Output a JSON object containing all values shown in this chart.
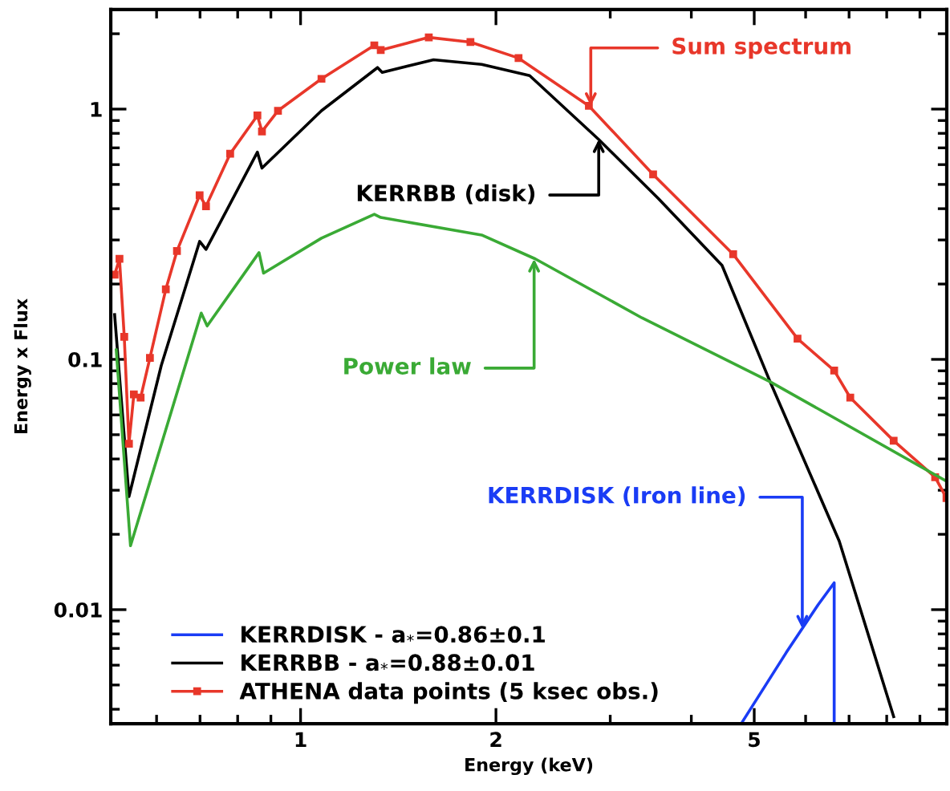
{
  "chart_data": {
    "type": "line",
    "xlabel": "Energy (keV)",
    "ylabel": "Energy x Flux",
    "log": "xy",
    "grid": false,
    "legend": "bottom left",
    "xlim": [
      0.51,
      9.9
    ],
    "ylim": [
      0.0035,
      2.5
    ],
    "xticks": [
      1,
      2,
      5
    ],
    "yticks": [
      0.01,
      0.1,
      1
    ],
    "series": [
      {
        "name": "KERRDISK - a$_{*}$=0.86±0.1",
        "color": "#1a3cf5",
        "marker": "none",
        "x": [
          4.8,
          5.6,
          6.27,
          6.64,
          6.64
        ],
        "values": [
          0.00358,
          0.00673,
          0.01045,
          0.0128,
          0.0035
        ]
      },
      {
        "name": "KERRBB - a$_{*}$=0.88±0.01",
        "color": "#000000",
        "marker": "none",
        "x": [
          0.517,
          0.544,
          0.61,
          0.699,
          0.715,
          0.858,
          0.872,
          1.077,
          1.314,
          1.336,
          1.603,
          1.901,
          2.254,
          2.879,
          3.556,
          4.46,
          5.29,
          6.76,
          8.2
        ],
        "values": [
          0.151,
          0.0283,
          0.0944,
          0.296,
          0.275,
          0.673,
          0.581,
          0.985,
          1.465,
          1.401,
          1.575,
          1.508,
          1.361,
          0.757,
          0.44,
          0.2376,
          0.0814,
          0.0188,
          0.00374
        ]
      },
      {
        "name": "ATHENA data points (5 ksec obs.)",
        "color": "#e8372a",
        "marker": "square",
        "x": [
          0.517,
          0.526,
          0.535,
          0.544,
          0.5535,
          0.567,
          0.586,
          0.62,
          0.645,
          0.699,
          0.715,
          0.779,
          0.858,
          0.872,
          0.923,
          1.077,
          1.299,
          1.329,
          1.576,
          1.827,
          2.167,
          2.781,
          3.493,
          4.64,
          5.83,
          6.64,
          7.03,
          8.2,
          9.5,
          9.89
        ],
        "values": [
          0.218,
          0.252,
          0.123,
          0.046,
          0.0724,
          0.0703,
          0.1014,
          0.1906,
          0.271,
          0.453,
          0.409,
          0.663,
          0.943,
          0.814,
          0.985,
          1.321,
          1.798,
          1.721,
          1.934,
          1.852,
          1.599,
          1.03,
          0.548,
          0.263,
          0.121,
          0.0902,
          0.0703,
          0.0473,
          0.0338,
          0.0279
        ]
      },
      {
        "color": "#3aaa35",
        "marker": "none",
        "x": [
          0.52,
          0.547,
          0.703,
          0.718,
          0.863,
          0.877,
          1.077,
          1.299,
          1.329,
          1.901,
          2.3,
          3.357,
          5.29,
          9.85
        ],
        "values": [
          0.109,
          0.018,
          0.153,
          0.136,
          0.267,
          0.221,
          0.305,
          0.38,
          0.369,
          0.314,
          0.252,
          0.1465,
          0.0814,
          0.0328
        ]
      }
    ],
    "annotations": [
      {
        "text": "KERRDISK (Iron line)",
        "x": 5.93,
        "y": 0.0084
      },
      {
        "text": "KERRBB (disk)",
        "x": 2.88,
        "y": 0.757
      },
      {
        "text": "Sum spectrum",
        "x": 2.8,
        "y": 1.03
      },
      {
        "text": "Power law",
        "x": 2.29,
        "y": 0.252
      }
    ]
  }
}
